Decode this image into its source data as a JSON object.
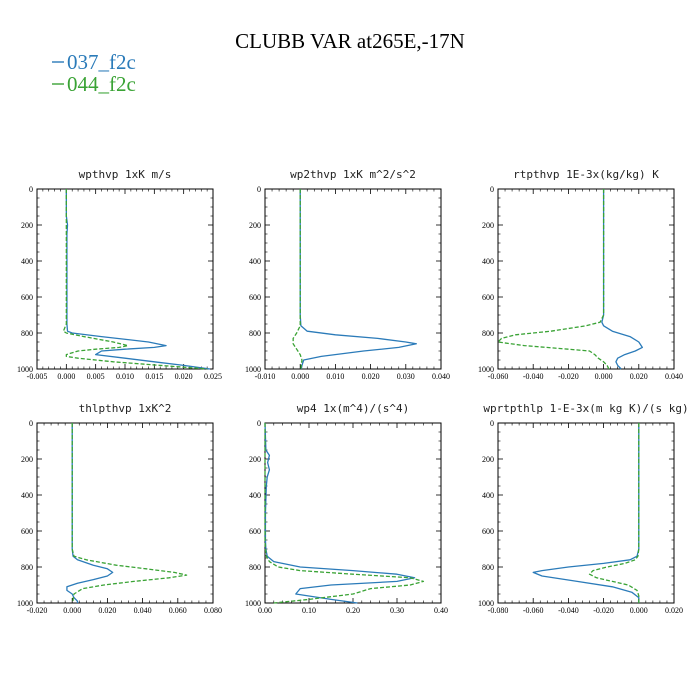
{
  "title": "CLUBB VAR at265E,-17N",
  "legend": [
    {
      "name": "037_f2c",
      "color": "#2b7bb9",
      "dash": "solid"
    },
    {
      "name": "044_f2c",
      "color": "#3aa335",
      "dash": "dashed"
    }
  ],
  "chart_data": [
    {
      "type": "line",
      "title": "wpthvp  1xK m/s",
      "xlim": [
        -0.005,
        0.025
      ],
      "xticks": [
        -0.005,
        0.0,
        0.005,
        0.01,
        0.015,
        0.02,
        0.025
      ],
      "xtick_labels": [
        "-0.005",
        "0.000",
        "0.005",
        "0.010",
        "0.015",
        "0.020",
        "0.025"
      ],
      "ylim": [
        1000,
        0
      ],
      "yticks": [
        0,
        200,
        400,
        600,
        800,
        1000
      ],
      "series": [
        {
          "name": "037_f2c",
          "y": [
            0,
            150,
            200,
            250,
            400,
            600,
            750,
            790,
            800,
            820,
            850,
            870,
            880,
            890,
            900,
            920,
            940,
            960,
            980,
            1000
          ],
          "x": [
            0.0,
            0.0,
            0.0002,
            0.0001,
            0.0001,
            0.0001,
            0.0001,
            0.0002,
            0.001,
            0.006,
            0.014,
            0.017,
            0.015,
            0.01,
            0.006,
            0.005,
            0.01,
            0.015,
            0.02,
            0.0245
          ]
        },
        {
          "name": "044_f2c",
          "y": [
            0,
            150,
            200,
            250,
            400,
            600,
            750,
            790,
            800,
            820,
            850,
            870,
            880,
            890,
            900,
            920,
            930,
            940,
            960,
            980,
            1000
          ],
          "x": [
            0.0,
            0.0,
            0.0,
            0.0,
            0.0,
            0.0,
            0.0,
            -0.0005,
            0.0,
            0.003,
            0.008,
            0.0105,
            0.009,
            0.005,
            0.002,
            0.0,
            0.0,
            0.002,
            0.008,
            0.016,
            0.024
          ]
        }
      ]
    },
    {
      "type": "line",
      "title": "wp2thvp  1xK m^2/s^2",
      "xlim": [
        -0.01,
        0.04
      ],
      "xticks": [
        -0.01,
        0.0,
        0.01,
        0.02,
        0.03,
        0.04
      ],
      "xtick_labels": [
        "-0.010",
        "0.000",
        "0.010",
        "0.020",
        "0.030",
        "0.040"
      ],
      "ylim": [
        1000,
        0
      ],
      "yticks": [
        0,
        200,
        400,
        600,
        800,
        1000
      ],
      "series": [
        {
          "name": "037_f2c",
          "y": [
            0,
            400,
            700,
            760,
            790,
            810,
            830,
            850,
            860,
            880,
            900,
            930,
            950,
            980,
            1000
          ],
          "x": [
            0.0,
            0.0,
            0.0,
            0.0002,
            0.002,
            0.01,
            0.022,
            0.03,
            0.033,
            0.028,
            0.018,
            0.006,
            0.001,
            0.0005,
            0.0003
          ]
        },
        {
          "name": "044_f2c",
          "y": [
            0,
            400,
            700,
            760,
            800,
            830,
            860,
            890,
            920,
            950,
            980,
            1000
          ],
          "x": [
            0.0,
            0.0,
            0.0,
            0.0,
            -0.001,
            -0.002,
            -0.002,
            -0.001,
            0.0,
            0.0005,
            0.0003,
            0.0002
          ]
        }
      ]
    },
    {
      "type": "line",
      "title": "rtpthvp  1E-3x(kg/kg) K",
      "xlim": [
        -0.06,
        0.04
      ],
      "xticks": [
        -0.06,
        -0.04,
        -0.02,
        0.0,
        0.02,
        0.04
      ],
      "xtick_labels": [
        "-0.060",
        "-0.040",
        "-0.020",
        "0.000",
        "0.020",
        "0.040"
      ],
      "ylim": [
        1000,
        0
      ],
      "yticks": [
        0,
        200,
        400,
        600,
        800,
        1000
      ],
      "series": [
        {
          "name": "037_f2c",
          "y": [
            0,
            400,
            700,
            740,
            760,
            790,
            820,
            850,
            880,
            900,
            920,
            940,
            960,
            980,
            1000
          ],
          "x": [
            0.0,
            0.0,
            0.0,
            -0.001,
            0.0,
            0.005,
            0.015,
            0.02,
            0.022,
            0.018,
            0.012,
            0.008,
            0.007,
            0.008,
            0.01
          ]
        },
        {
          "name": "044_f2c",
          "y": [
            0,
            400,
            700,
            740,
            760,
            790,
            810,
            830,
            850,
            870,
            890,
            900,
            920,
            940,
            960,
            980,
            1000
          ],
          "x": [
            0.0,
            0.0,
            0.0,
            -0.002,
            -0.01,
            -0.03,
            -0.05,
            -0.058,
            -0.06,
            -0.045,
            -0.02,
            -0.008,
            -0.005,
            -0.003,
            0.0,
            0.002,
            0.003
          ]
        }
      ]
    },
    {
      "type": "line",
      "title": "thlpthvp  1xK^2",
      "xlim": [
        -0.02,
        0.08
      ],
      "xticks": [
        -0.02,
        0.0,
        0.02,
        0.04,
        0.06,
        0.08
      ],
      "xtick_labels": [
        "-0.020",
        "0.000",
        "0.020",
        "0.040",
        "0.060",
        "0.080"
      ],
      "ylim": [
        1000,
        0
      ],
      "yticks": [
        0,
        200,
        400,
        600,
        800,
        1000
      ],
      "series": [
        {
          "name": "037_f2c",
          "y": [
            0,
            400,
            700,
            740,
            760,
            790,
            810,
            830,
            850,
            870,
            890,
            910,
            930,
            950,
            970,
            990,
            1000
          ],
          "x": [
            0.0,
            0.0,
            0.0,
            0.0005,
            0.003,
            0.012,
            0.02,
            0.023,
            0.02,
            0.012,
            0.003,
            -0.003,
            -0.003,
            0.0,
            0.001,
            0.003,
            0.003
          ]
        },
        {
          "name": "044_f2c",
          "y": [
            0,
            400,
            700,
            740,
            760,
            790,
            810,
            830,
            845,
            860,
            880,
            900,
            920,
            950,
            980,
            1000
          ],
          "x": [
            0.0,
            0.0,
            0.0,
            0.001,
            0.008,
            0.025,
            0.042,
            0.058,
            0.065,
            0.055,
            0.035,
            0.018,
            0.006,
            0.001,
            0.0005,
            0.0003
          ]
        }
      ]
    },
    {
      "type": "line",
      "title": "wp4  1x(m^4)/(s^4)",
      "xlim": [
        0.0,
        0.4
      ],
      "xticks": [
        0.0,
        0.1,
        0.2,
        0.3,
        0.4
      ],
      "xtick_labels": [
        "0.00",
        "0.10",
        "0.20",
        "0.30",
        "0.40"
      ],
      "ylim": [
        1000,
        0
      ],
      "yticks": [
        0,
        200,
        400,
        600,
        800,
        1000
      ],
      "series": [
        {
          "name": "037_f2c",
          "y": [
            0,
            150,
            180,
            220,
            260,
            300,
            350,
            500,
            650,
            700,
            740,
            770,
            800,
            820,
            840,
            860,
            880,
            900,
            920,
            950,
            980,
            1000
          ],
          "x": [
            0.0,
            0.002,
            0.01,
            0.006,
            0.01,
            0.005,
            0.003,
            0.001,
            0.001,
            0.002,
            0.005,
            0.02,
            0.08,
            0.2,
            0.3,
            0.34,
            0.3,
            0.15,
            0.08,
            0.07,
            0.15,
            0.21
          ]
        },
        {
          "name": "044_f2c",
          "y": [
            0,
            150,
            300,
            500,
            650,
            700,
            740,
            770,
            800,
            820,
            840,
            860,
            880,
            900,
            920,
            950,
            980,
            1000
          ],
          "x": [
            0.0,
            0.0,
            0.0,
            0.0,
            0.0,
            0.001,
            0.003,
            0.01,
            0.03,
            0.08,
            0.2,
            0.33,
            0.36,
            0.33,
            0.24,
            0.2,
            0.1,
            0.02
          ]
        }
      ]
    },
    {
      "type": "line",
      "title": "wprtpthlp  1-E-3x(m kg K)/(s kg)",
      "xlim": [
        -0.08,
        0.02
      ],
      "xticks": [
        -0.08,
        -0.06,
        -0.04,
        -0.02,
        0.0,
        0.02
      ],
      "xtick_labels": [
        "-0.080",
        "-0.060",
        "-0.040",
        "-0.020",
        "0.000",
        "0.020"
      ],
      "ylim": [
        1000,
        0
      ],
      "yticks": [
        0,
        200,
        400,
        600,
        800,
        1000
      ],
      "series": [
        {
          "name": "037_f2c",
          "y": [
            0,
            400,
            700,
            740,
            760,
            780,
            800,
            820,
            830,
            850,
            880,
            910,
            940,
            970,
            1000
          ],
          "x": [
            0.0,
            0.0,
            0.0,
            -0.001,
            -0.005,
            -0.02,
            -0.04,
            -0.055,
            -0.06,
            -0.055,
            -0.035,
            -0.015,
            -0.004,
            0.0,
            0.0
          ]
        },
        {
          "name": "044_f2c",
          "y": [
            0,
            400,
            700,
            740,
            760,
            780,
            800,
            820,
            840,
            860,
            880,
            900,
            930,
            960,
            1000
          ],
          "x": [
            0.0,
            0.0,
            0.0,
            -0.0005,
            -0.002,
            -0.008,
            -0.018,
            -0.026,
            -0.028,
            -0.024,
            -0.015,
            -0.006,
            -0.001,
            0.0,
            0.0
          ]
        }
      ]
    }
  ]
}
